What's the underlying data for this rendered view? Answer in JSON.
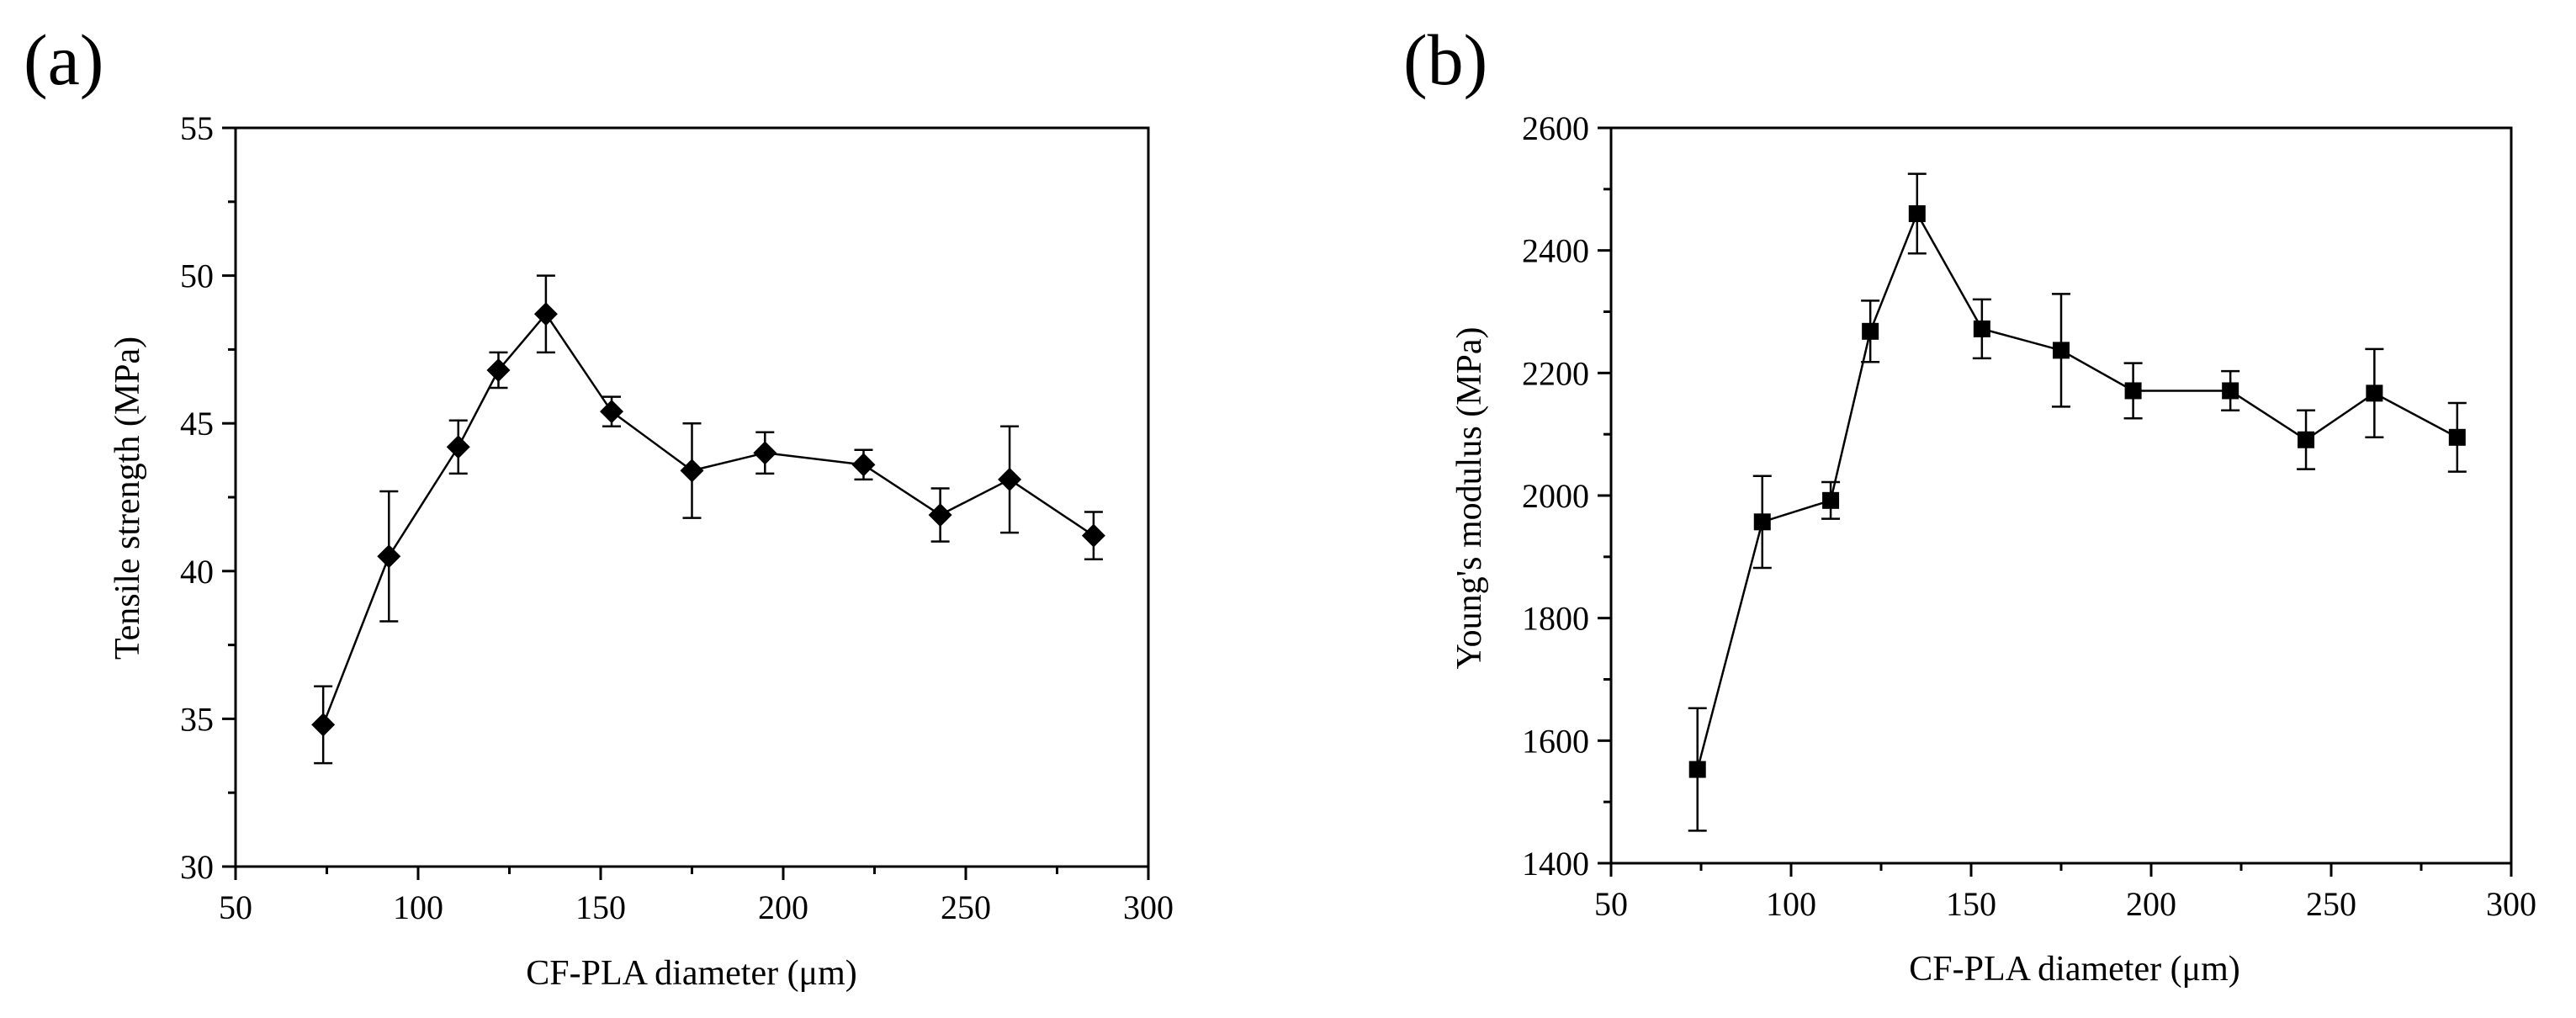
{
  "chart_data": [
    {
      "type": "line",
      "panel_label": "(a)",
      "title": "",
      "xlabel": "CF-PLA diameter (μm)",
      "ylabel": "Tensile strength (MPa)",
      "xlim": [
        50,
        300
      ],
      "ylim": [
        30,
        55
      ],
      "xticks": [
        "50",
        "100",
        "150",
        "200",
        "250",
        "300"
      ],
      "yticks": [
        "30",
        "35",
        "40",
        "45",
        "50",
        "55"
      ],
      "marker": "diamond",
      "series": [
        {
          "name": "Tensile strength",
          "x": [
            74,
            92,
            111,
            122,
            135,
            153,
            175,
            195,
            222,
            243,
            262,
            285
          ],
          "y": [
            34.8,
            40.5,
            44.2,
            46.8,
            48.7,
            45.4,
            43.4,
            44.0,
            43.6,
            41.9,
            43.1,
            41.2
          ],
          "error": [
            1.3,
            2.2,
            0.9,
            0.6,
            1.3,
            0.5,
            1.6,
            0.7,
            0.5,
            0.9,
            1.8,
            0.8
          ]
        }
      ]
    },
    {
      "type": "line",
      "panel_label": "(b)",
      "title": "",
      "xlabel": "CF-PLA diameter (μm)",
      "ylabel": "Young's modulus (MPa)",
      "xlim": [
        50,
        300
      ],
      "ylim": [
        1400,
        2600
      ],
      "xticks": [
        "50",
        "100",
        "150",
        "200",
        "250",
        "300"
      ],
      "yticks": [
        "1400",
        "1600",
        "1800",
        "2000",
        "2200",
        "2400",
        "2600"
      ],
      "marker": "square",
      "series": [
        {
          "name": "Young's modulus",
          "x": [
            74,
            92,
            111,
            122,
            135,
            153,
            175,
            195,
            222,
            243,
            262,
            285
          ],
          "y": [
            1553,
            1957,
            1992,
            2268,
            2460,
            2272,
            2237,
            2171,
            2171,
            2091,
            2167,
            2095
          ],
          "error": [
            100,
            75,
            30,
            50,
            65,
            48,
            92,
            45,
            32,
            48,
            72,
            56
          ]
        }
      ]
    }
  ]
}
